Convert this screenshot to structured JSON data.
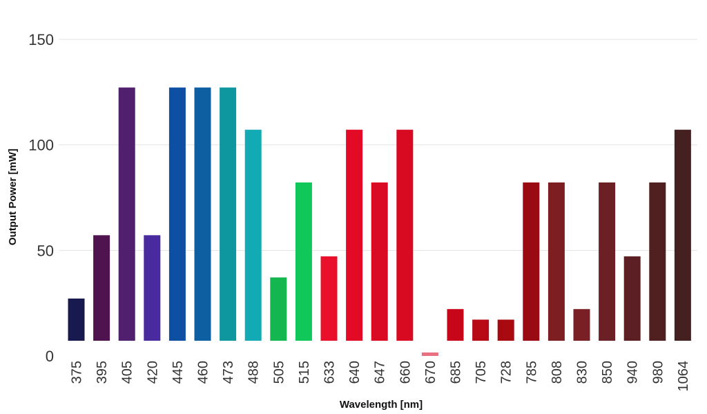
{
  "chart_data": {
    "type": "bar",
    "xlabel": "Wavelength [nm]",
    "ylabel": "Output Power [mW]",
    "ylim": [
      0,
      150
    ],
    "yticks": [
      "0",
      "50",
      "100",
      "150"
    ],
    "grid": true,
    "categories": [
      "375",
      "395",
      "405",
      "420",
      "445",
      "460",
      "473",
      "488",
      "505",
      "515",
      "633",
      "640",
      "647",
      "660",
      "670",
      "685",
      "705",
      "728",
      "785",
      "808",
      "830",
      "850",
      "940",
      "980",
      "1064"
    ],
    "values": [
      20,
      50,
      120,
      50,
      120,
      120,
      120,
      100,
      30,
      75,
      40,
      100,
      75,
      100,
      1,
      15,
      10,
      10,
      75,
      75,
      15,
      75,
      40,
      75,
      100
    ],
    "colors": [
      "#181a4f",
      "#4f1450",
      "#50206e",
      "#4a2a9f",
      "#0d4fa2",
      "#0d5fa2",
      "#0f979f",
      "#12aab5",
      "#14b650",
      "#10c85a",
      "#e8102a",
      "#e20a25",
      "#db0a24",
      "#d80a22",
      "#e87080",
      "#c8061a",
      "#b80a15",
      "#a80a10",
      "#9a0a12",
      "#7d1e23",
      "#7a2024",
      "#6a2024",
      "#5c2024",
      "#502020",
      "#452020"
    ]
  }
}
